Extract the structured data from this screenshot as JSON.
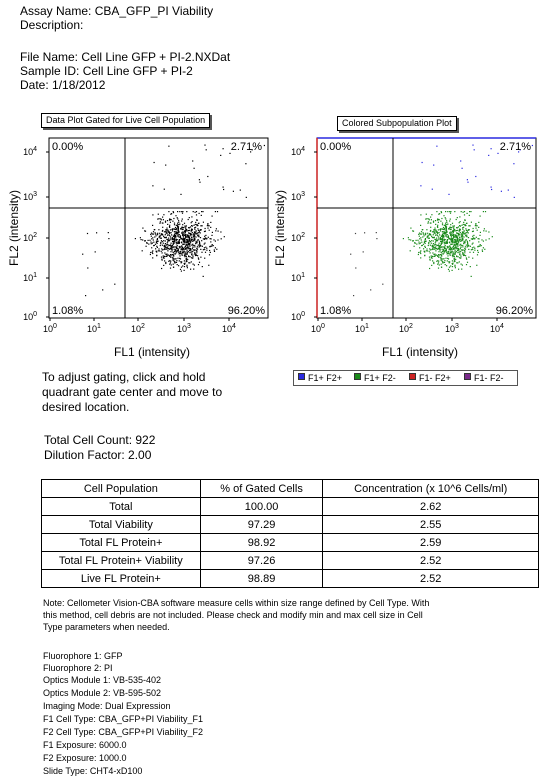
{
  "header": {
    "assay_name": "Assay Name: CBA_GFP_PI Viability",
    "description": "Description:",
    "file_name": "File Name: Cell Line GFP + PI-2.NXDat",
    "sample_id": "Sample ID: Cell Line GFP + PI-2",
    "date": "Date: 1/18/2012"
  },
  "plots": {
    "left_title": "Data Plot Gated for Live Cell Population",
    "right_title": "Colored Subpopulation Plot",
    "xlabel": "FL1 (intensity)",
    "ylabel": "FL2 (intensity)",
    "x_ticks": [
      "10",
      "10",
      "10",
      "10",
      "10"
    ],
    "x_exps": [
      "0",
      "1",
      "2",
      "3",
      "4"
    ],
    "y_ticks": [
      "10",
      "10",
      "10",
      "10",
      "10"
    ],
    "y_exps": [
      "0",
      "1",
      "2",
      "3",
      "4"
    ],
    "quadrants": {
      "upper_left": "0.00%",
      "upper_right": "2.71%",
      "lower_left": "1.08%",
      "lower_right": "96.20%"
    },
    "colors": {
      "dots_left": "#000000",
      "dots_right": "#1a8a1a",
      "upper_dots_right": "#2a2ae0",
      "right_top_border": "#2a2ae0",
      "right_left_border": "#cc2222"
    }
  },
  "chart_data": {
    "type": "scatter",
    "x_scale": "log",
    "y_scale": "log",
    "xlim": [
      1,
      30000
    ],
    "ylim": [
      1,
      30000
    ],
    "gate": {
      "x": 50,
      "y": 400
    },
    "quadrant_percent": {
      "F1+ F2+": 2.71,
      "F1- F2+": 0.0,
      "F1- F2-": 1.08,
      "F1+ F2-": 96.2
    },
    "total_cells": 922
  },
  "legend": {
    "items": [
      {
        "label": "F1+ F2+",
        "color": "#2a2ae0"
      },
      {
        "label": "F1+ F2-",
        "color": "#1a8a1a"
      },
      {
        "label": "F1- F2+",
        "color": "#cc2222"
      },
      {
        "label": "F1- F2-",
        "color": "#7a2a8a"
      }
    ]
  },
  "instructions": {
    "line1": "To adjust gating, click and hold",
    "line2": "quadrant gate center and move to",
    "line3": "desired location."
  },
  "counts": {
    "total_cell_count": "Total Cell Count: 922",
    "dilution_factor": "Dilution Factor: 2.00"
  },
  "results_table": {
    "headers": [
      "Cell Population",
      "% of Gated Cells",
      "Concentration (x 10^6 Cells/ml)"
    ],
    "rows": [
      [
        "Total",
        "100.00",
        "2.62"
      ],
      [
        "Total Viability",
        "97.29",
        "2.55"
      ],
      [
        "Total FL Protein+",
        "98.92",
        "2.59"
      ],
      [
        "Total FL Protein+ Viability",
        "97.26",
        "2.52"
      ],
      [
        "Live FL Protein+",
        "98.89",
        "2.52"
      ]
    ]
  },
  "note": {
    "line1": "Note: Cellometer Vision-CBA software measure cells within size range defined by Cell Type.   With",
    "line2": "this method, cell debris are not included.  Please check and modify min and max cell size in Cell",
    "line3": "Type parameters when needed."
  },
  "settings": [
    "Fluorophore 1: GFP",
    "Fluorophore 2: PI",
    "Optics Module 1: VB-535-402",
    "Optics Module 2: VB-595-502",
    "Imaging Mode: Dual Expression",
    "F1 Cell Type: CBA_GFP+PI Viability_F1",
    "F2 Cell Type: CBA_GFP+PI Viability_F2",
    "F1 Exposure: 6000.0",
    "F2 Exposure: 1000.0",
    "Slide Type: CHT4-xD100"
  ]
}
